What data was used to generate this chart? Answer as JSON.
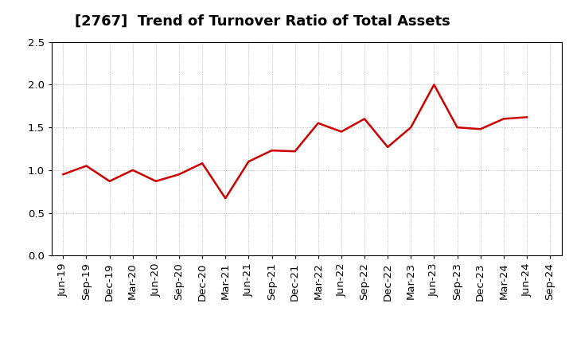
{
  "title": "[2767]  Trend of Turnover Ratio of Total Assets",
  "x_labels": [
    "Jun-19",
    "Sep-19",
    "Dec-19",
    "Mar-20",
    "Jun-20",
    "Sep-20",
    "Dec-20",
    "Mar-21",
    "Jun-21",
    "Sep-21",
    "Dec-21",
    "Mar-22",
    "Jun-22",
    "Sep-22",
    "Dec-22",
    "Mar-23",
    "Jun-23",
    "Sep-23",
    "Dec-23",
    "Mar-24",
    "Jun-24",
    "Sep-24"
  ],
  "values": [
    0.95,
    1.05,
    0.87,
    1.0,
    0.87,
    0.95,
    1.08,
    0.67,
    1.1,
    1.23,
    1.22,
    1.55,
    1.45,
    1.6,
    1.27,
    1.5,
    2.0,
    1.5,
    1.48,
    1.6,
    1.62,
    null
  ],
  "line_color": "#cc0000",
  "line_width": 1.8,
  "ylim": [
    0.0,
    2.5
  ],
  "yticks": [
    0.0,
    0.5,
    1.0,
    1.5,
    2.0,
    2.5
  ],
  "grid_color": "#aaaaaa",
  "bg_color": "#ffffff",
  "title_fontsize": 13,
  "tick_fontsize": 9.5,
  "title_fontweight": "bold"
}
